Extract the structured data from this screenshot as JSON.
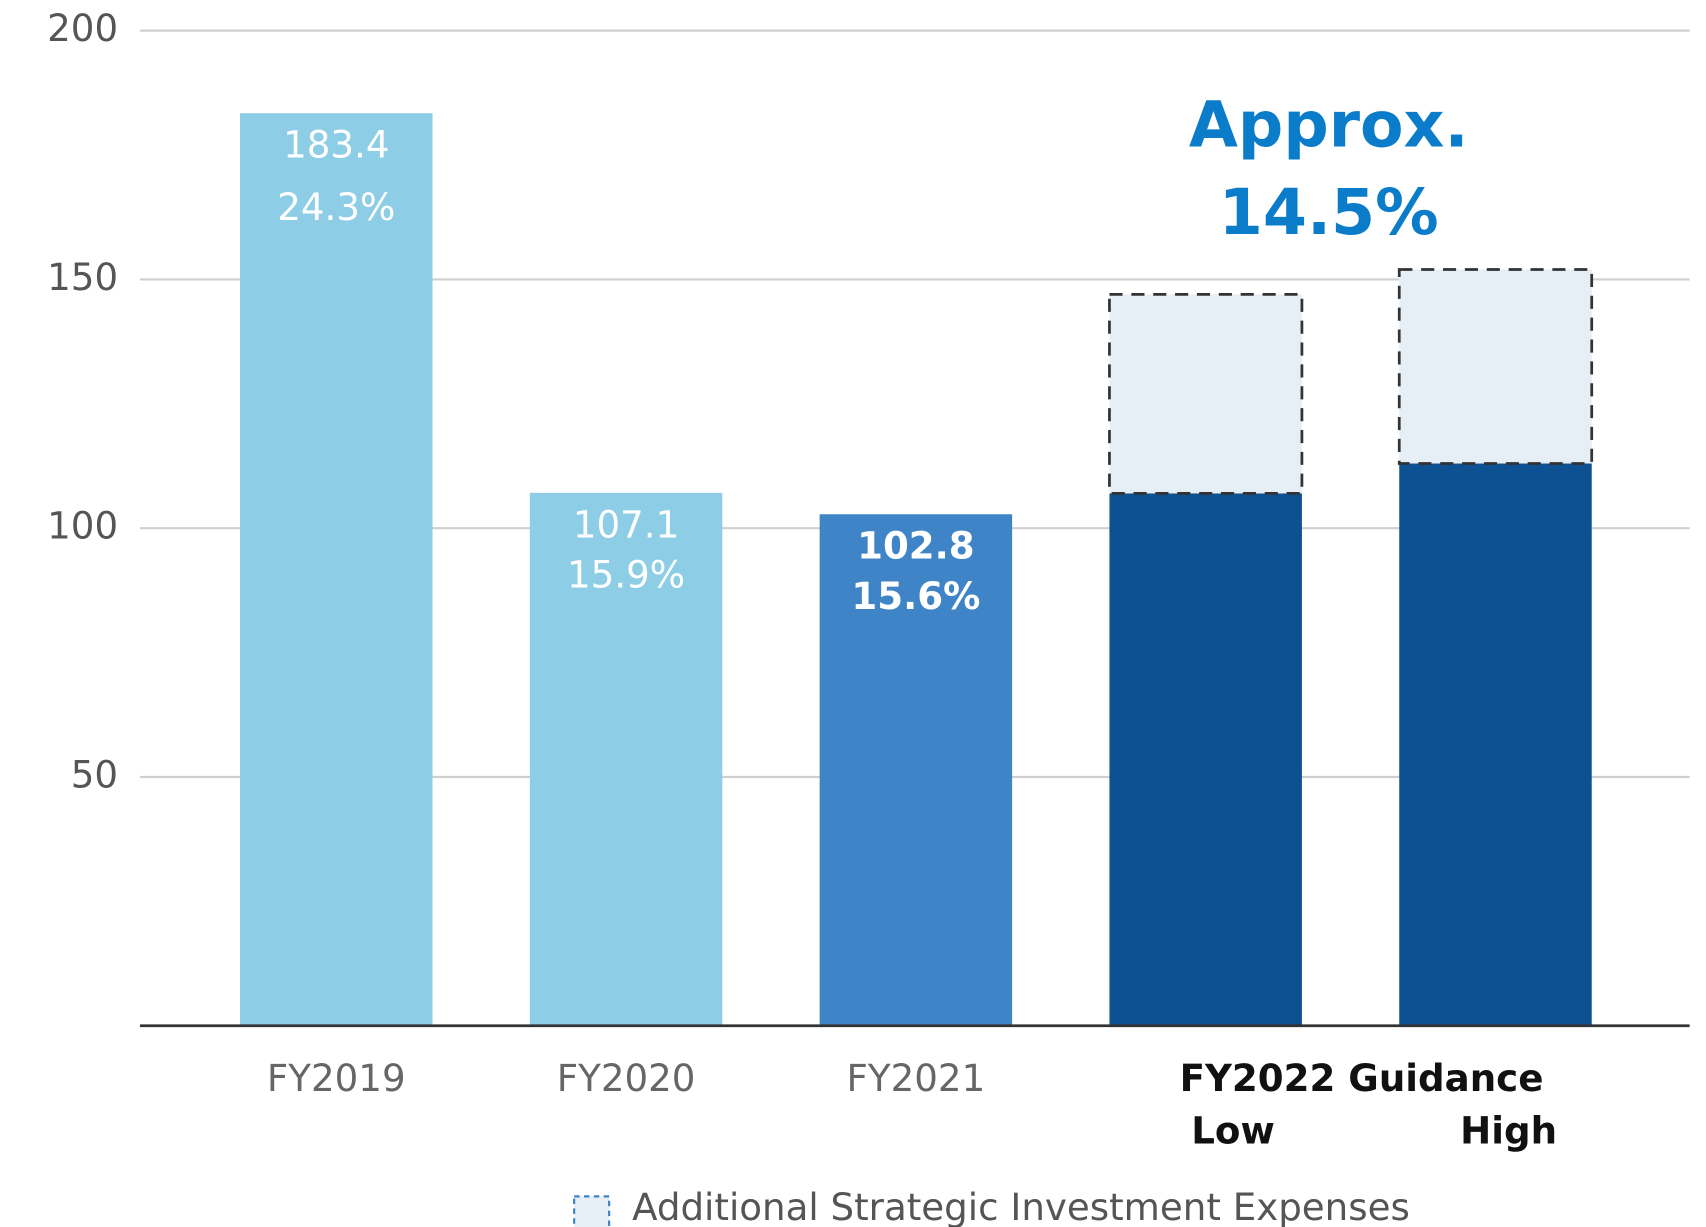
{
  "chart_data": {
    "type": "bar",
    "categories": [
      "FY2019",
      "FY2020",
      "FY2021",
      "Low",
      "High"
    ],
    "category_group": "FY2022 Guidance",
    "series": [
      {
        "colors": [
          "#8ecde6",
          "#8ecde6",
          "#3f84c6",
          "#0e5193",
          "#0e5193"
        ],
        "values": [
          183.4,
          107.1,
          102.8,
          107,
          113
        ]
      },
      {
        "name": "Additional Strategic Investment Expenses",
        "color": "#e6eef6",
        "values": [
          null,
          null,
          null,
          40,
          39
        ]
      }
    ],
    "margin_labels": [
      "24.3%",
      "15.9%",
      "15.6%",
      null,
      null
    ],
    "annotation": [
      "Approx.",
      "14.5%"
    ],
    "ylim": [
      0,
      200
    ],
    "yticks": [
      50,
      100,
      150,
      200
    ],
    "grid": true
  }
}
